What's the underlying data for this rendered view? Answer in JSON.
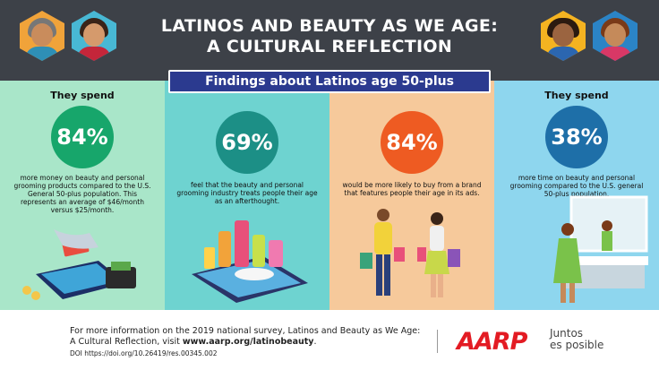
{
  "header": {
    "title_line1": "LATINOS AND BEAUTY AS WE AGE:",
    "title_line2": "A CULTURAL REFLECTION"
  },
  "banner": {
    "label": "Findings about Latinos age 50-plus"
  },
  "panels": [
    {
      "label": "They spend",
      "stat": "84%",
      "circle_color": "#17a66b",
      "text": "more money on beauty and personal grooming products compared to the U.S. General 50-plus population. This represents an average of $46/month versus $25/month.",
      "illustration": "credit-card-payment"
    },
    {
      "label": "",
      "stat": "69%",
      "circle_color": "#1c8f86",
      "text": "feel that the beauty and personal grooming industry treats people their age as an afterthought.",
      "illustration": "beauty-products-on-phone"
    },
    {
      "label": "",
      "stat": "84%",
      "circle_color": "#ee5b22",
      "text": "would be more likely to buy from a brand that features people their age in its ads.",
      "illustration": "shopping-couple"
    },
    {
      "label": "They spend",
      "stat": "38%",
      "circle_color": "#1e6fa8",
      "text": "more time on beauty and personal grooming compared to the U.S. general 50-plus population.",
      "illustration": "woman-at-mirror"
    }
  ],
  "footer": {
    "text_before": "For more information on the 2019 national survey, Latinos and Beauty as We Age: A Cultural Reflection, visit ",
    "link": "www.aarp.org/latinobeauty",
    "text_after": ".",
    "doi": "DOI https://doi.org/10.26419/res.00345.002",
    "logo": "AARP",
    "tagline_line1": "Juntos",
    "tagline_line2": "es posible",
    "logo_color": "#e31b23"
  },
  "colors": {
    "header_bg": "#3d4148",
    "banner_bg": "#2b3a8f"
  }
}
